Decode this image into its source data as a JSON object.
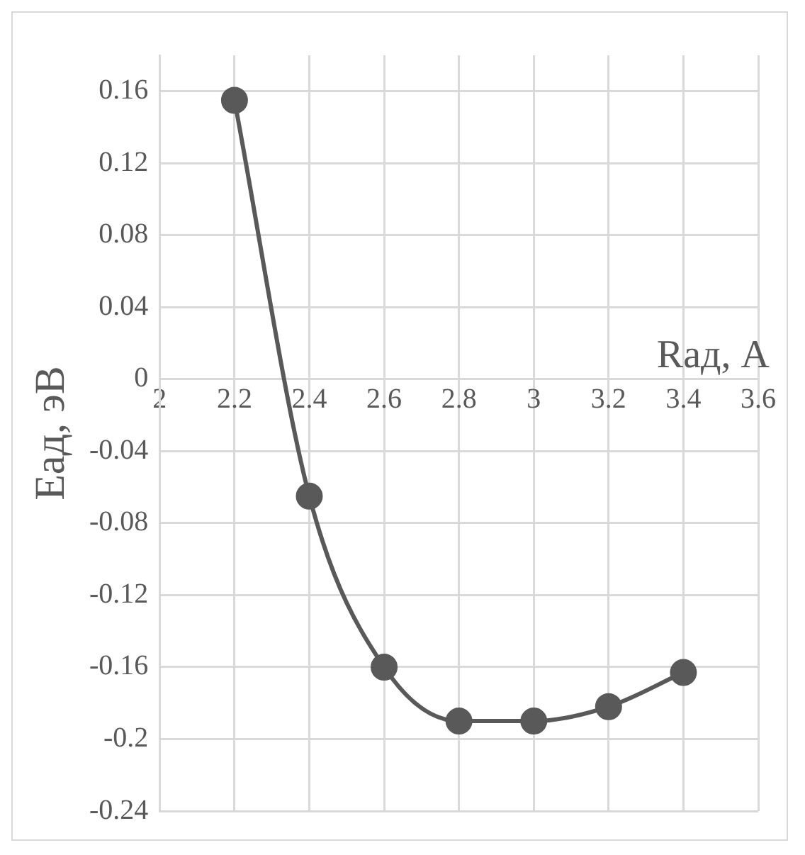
{
  "chart_data": {
    "type": "line",
    "xlabel": "Rад, А",
    "ylabel": "Eад, эВ",
    "x": [
      2.2,
      2.4,
      2.6,
      2.8,
      3,
      3.2,
      3.4
    ],
    "series": [
      {
        "color": "#595959",
        "values": [
          0.155,
          -0.065,
          -0.16,
          -0.19,
          -0.19,
          -0.182,
          -0.163
        ]
      }
    ],
    "xlim": [
      2,
      3.6
    ],
    "xticks": [
      2,
      2.2,
      2.4,
      2.6,
      2.8,
      3,
      3.2,
      3.4,
      3.6
    ],
    "ylim": [
      -0.24,
      0.18
    ],
    "yticks": [
      -0.24,
      -0.2,
      -0.16,
      -0.12,
      -0.08,
      -0.04,
      0,
      0.04,
      0.08,
      0.12,
      0.16
    ],
    "grid": true,
    "marker": "circle",
    "line_style": "solid",
    "legend": false
  }
}
